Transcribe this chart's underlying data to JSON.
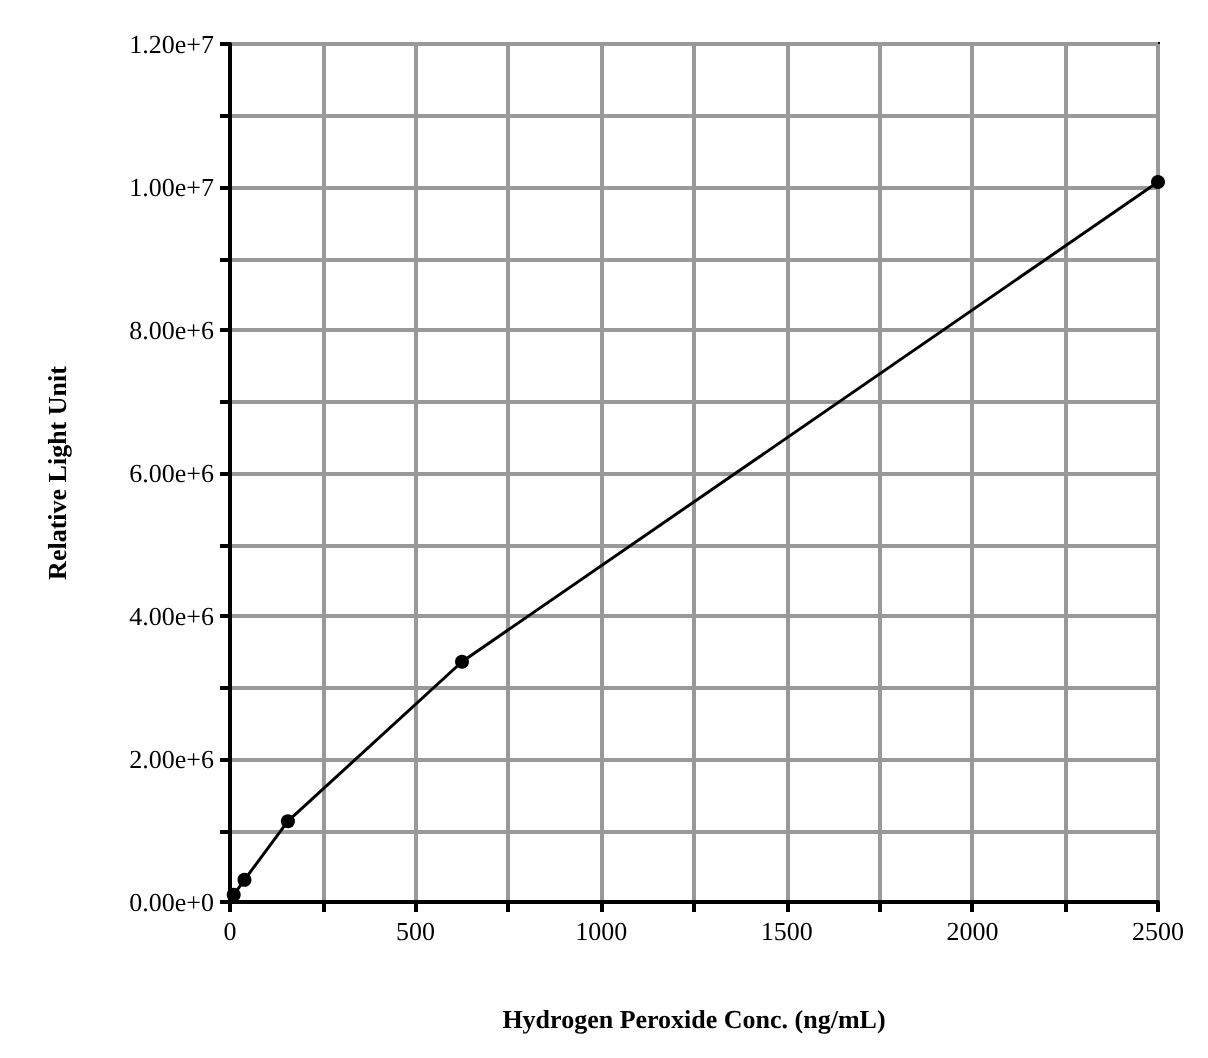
{
  "chart_data": {
    "type": "line",
    "xlabel": "Hydrogen Peroxide Conc. (ng/mL)",
    "ylabel": "Relative Light Unit",
    "x": [
      10,
      39,
      156,
      625,
      2500
    ],
    "series": [
      {
        "color": "#000000",
        "values": [
          100000,
          310000,
          1130000,
          3360000,
          10070000
        ]
      }
    ],
    "xlim": [
      0,
      2500
    ],
    "xticks": [
      0,
      {
        "value": 250,
        "label": null
      },
      500,
      {
        "value": 750,
        "label": null
      },
      1000,
      {
        "value": 1250,
        "label": null
      },
      1500,
      {
        "value": 1750,
        "label": null
      },
      2000,
      {
        "value": 2250,
        "label": null
      },
      2500
    ],
    "ylim": [
      0,
      12000000
    ],
    "yticks": [
      {
        "value": 0,
        "label": "0.00e+0"
      },
      {
        "value": 1000000,
        "label": null
      },
      {
        "value": 2000000,
        "label": "2.00e+6"
      },
      {
        "value": 3000000,
        "label": null
      },
      {
        "value": 4000000,
        "label": "4.00e+6"
      },
      {
        "value": 5000000,
        "label": null
      },
      {
        "value": 6000000,
        "label": "6.00e+6"
      },
      {
        "value": 7000000,
        "label": null
      },
      {
        "value": 8000000,
        "label": "8.00e+6"
      },
      {
        "value": 9000000,
        "label": null
      },
      {
        "value": 10000000,
        "label": "1.00e+7"
      },
      {
        "value": 11000000,
        "label": null
      },
      {
        "value": 12000000,
        "label": "1.20e+7"
      }
    ],
    "grid": true,
    "marker": "circle",
    "line_style": "solid"
  }
}
